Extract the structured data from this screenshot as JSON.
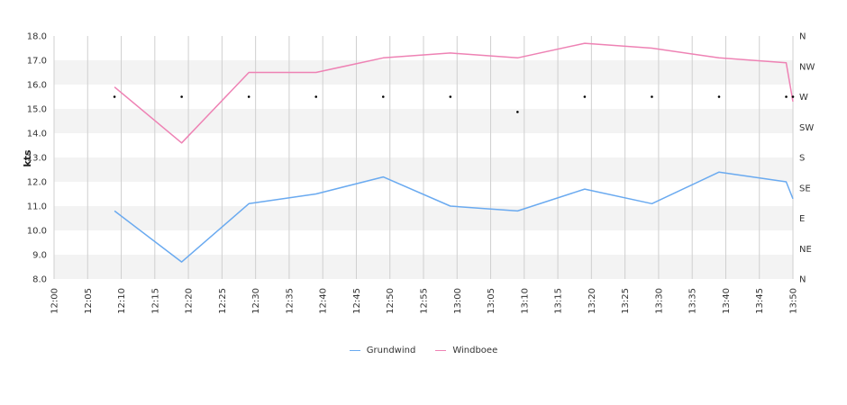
{
  "chart_data": {
    "type": "line",
    "ylabel": "kts",
    "ylim": [
      8.0,
      18.0
    ],
    "y_ticks": [
      "18.0",
      "17.0",
      "16.0",
      "15.0",
      "14.0",
      "13.0",
      "12.0",
      "11.0",
      "10.0",
      "9.0",
      "8.0"
    ],
    "direction_ticks": [
      "N",
      "NW",
      "W",
      "SW",
      "S",
      "SE",
      "E",
      "NE",
      "N"
    ],
    "x_ticks": [
      "12:00",
      "12:05",
      "12:10",
      "12:15",
      "12:20",
      "12:25",
      "12:30",
      "12:35",
      "12:40",
      "12:45",
      "12:50",
      "12:55",
      "13:00",
      "13:05",
      "13:10",
      "13:15",
      "13:20",
      "13:25",
      "13:30",
      "13:35",
      "13:40",
      "13:45",
      "13:50"
    ],
    "xlim": [
      "12:00",
      "13:50"
    ],
    "grid": true,
    "legend_position": "bottom",
    "series": [
      {
        "name": "Grundwind",
        "color": "#6aaaf0",
        "x": [
          "12:09",
          "12:19",
          "12:29",
          "12:39",
          "12:49",
          "12:59",
          "13:09",
          "13:19",
          "13:29",
          "13:39",
          "13:49",
          "13:50"
        ],
        "values": [
          10.8,
          8.7,
          11.1,
          11.5,
          12.2,
          11.0,
          10.8,
          11.7,
          11.1,
          12.4,
          12.0,
          11.3
        ]
      },
      {
        "name": "Windboee",
        "color": "#ee82b4",
        "x": [
          "12:09",
          "12:19",
          "12:29",
          "12:39",
          "12:49",
          "12:59",
          "13:09",
          "13:19",
          "13:29",
          "13:39",
          "13:49",
          "13:50"
        ],
        "values": [
          15.9,
          13.6,
          16.5,
          16.5,
          17.1,
          17.3,
          17.1,
          17.7,
          17.5,
          17.1,
          16.9,
          15.3
        ]
      }
    ],
    "direction_points": {
      "x": [
        "12:09",
        "12:19",
        "12:29",
        "12:39",
        "12:49",
        "12:59",
        "13:09",
        "13:19",
        "13:29",
        "13:39",
        "13:49",
        "13:50"
      ],
      "values": [
        "W",
        "W",
        "W",
        "W",
        "W",
        "W",
        "WSW",
        "W",
        "W",
        "W",
        "W",
        "W"
      ]
    }
  }
}
